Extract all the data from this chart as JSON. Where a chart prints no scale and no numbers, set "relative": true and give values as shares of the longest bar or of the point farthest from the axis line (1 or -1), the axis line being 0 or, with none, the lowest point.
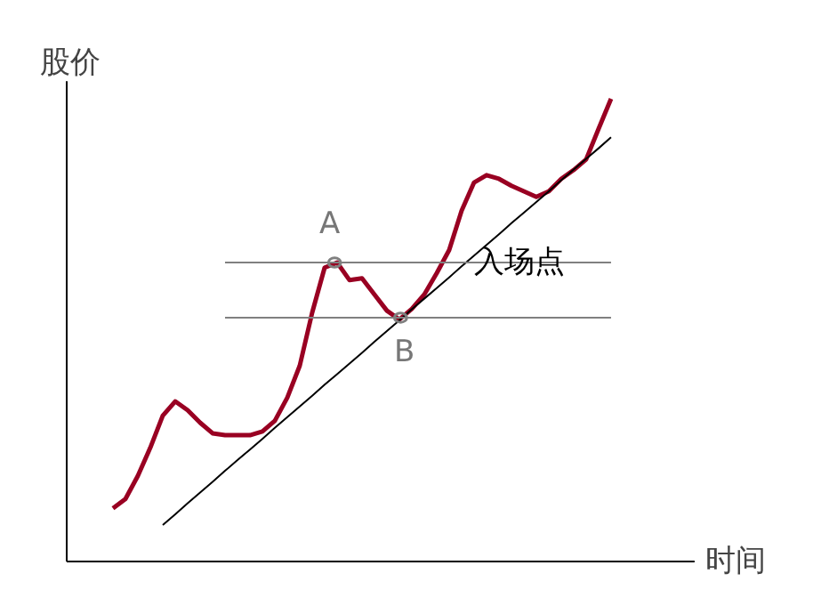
{
  "chart_data": {
    "type": "line",
    "relative": true,
    "xlabel": "时间",
    "ylabel": "股价",
    "tick_labels": false,
    "grid": false,
    "marker": "none",
    "categories": [
      null,
      null,
      null,
      null,
      null,
      null,
      null,
      null,
      null,
      null,
      null,
      null,
      null,
      null,
      null,
      null,
      null,
      null,
      null,
      null,
      null,
      null,
      null,
      null,
      null,
      null,
      null,
      null,
      null,
      null,
      null,
      null,
      null,
      null,
      null,
      null,
      null,
      null,
      null,
      null,
      null
    ],
    "series": [
      {
        "color": "#990022",
        "values": [
          0.115,
          0.135,
          0.185,
          0.246,
          0.315,
          0.346,
          0.327,
          0.3,
          0.277,
          0.273,
          0.273,
          0.273,
          0.281,
          0.304,
          0.354,
          0.423,
          0.538,
          0.635,
          0.646,
          0.608,
          0.612,
          0.577,
          0.542,
          0.523,
          0.546,
          0.577,
          0.623,
          0.673,
          0.758,
          0.819,
          0.835,
          0.827,
          0.812,
          0.8,
          0.788,
          0.8,
          0.827,
          0.846,
          0.869,
          0.935,
          1.0
        ]
      },
      {
        "color": "#000000",
        "values": [
          null,
          null,
          null,
          null,
          0.079,
          0.102,
          0.126,
          0.149,
          0.172,
          0.196,
          0.219,
          0.242,
          0.265,
          0.289,
          0.312,
          0.335,
          0.358,
          0.382,
          0.405,
          0.428,
          0.451,
          0.475,
          0.498,
          0.521,
          0.545,
          0.568,
          0.591,
          0.614,
          0.638,
          0.661,
          0.684,
          0.707,
          0.731,
          0.754,
          0.777,
          0.8,
          0.824,
          0.847,
          0.87,
          0.893,
          0.917
        ]
      },
      {
        "color": "#808080",
        "values": [
          null,
          null,
          null,
          null,
          null,
          null,
          null,
          null,
          null,
          0.646,
          0.646,
          0.646,
          0.646,
          0.646,
          0.646,
          0.646,
          0.646,
          0.646,
          0.646,
          0.646,
          0.646,
          0.646,
          0.646,
          0.646,
          0.646,
          0.646,
          0.646,
          0.646,
          0.646,
          0.646,
          0.646,
          0.646,
          0.646,
          0.646,
          0.646,
          0.646,
          0.646,
          0.646,
          0.646,
          0.646,
          0.646
        ]
      },
      {
        "color": "#808080",
        "values": [
          null,
          null,
          null,
          null,
          null,
          null,
          null,
          null,
          null,
          0.527,
          0.527,
          0.527,
          0.527,
          0.527,
          0.527,
          0.527,
          0.527,
          0.527,
          0.527,
          0.527,
          0.527,
          0.527,
          0.527,
          0.527,
          0.527,
          0.527,
          0.527,
          0.527,
          0.527,
          0.527,
          0.527,
          0.527,
          0.527,
          0.527,
          0.527,
          0.527,
          0.527,
          0.527,
          0.527,
          0.527,
          0.527
        ]
      }
    ],
    "annotations": [
      "A",
      "B",
      "入场点"
    ]
  }
}
